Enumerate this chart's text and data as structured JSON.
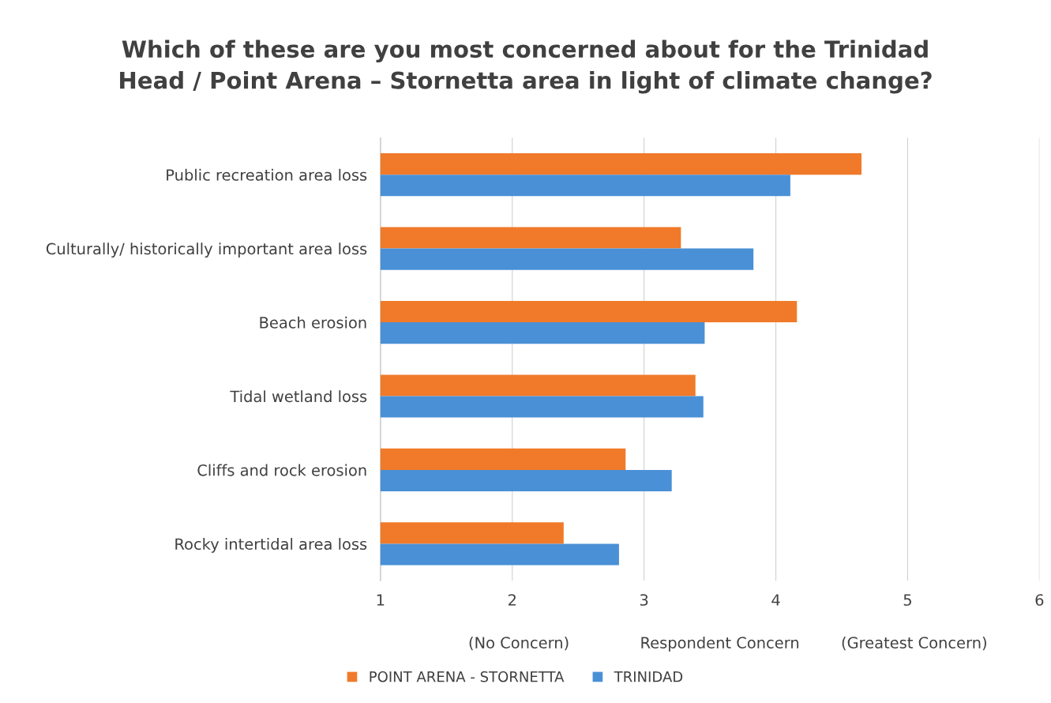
{
  "chart_data": {
    "type": "bar",
    "orientation": "horizontal",
    "title": "Which of these are you most concerned about for the Trinidad\nHead / Point Arena – Stornetta area in light of climate change?",
    "categories": [
      "Public recreation area loss",
      "Culturally/ historically important area loss",
      "Beach erosion",
      "Tidal wetland loss",
      "Cliffs and rock erosion",
      "Rocky intertidal area loss"
    ],
    "series": [
      {
        "name": "POINT ARENA - STORNETTA",
        "color": "#f07a2a",
        "values": [
          4.65,
          3.28,
          4.16,
          3.39,
          2.86,
          2.39
        ]
      },
      {
        "name": "TRINIDAD",
        "color": "#4a90d6",
        "values": [
          4.11,
          3.83,
          3.46,
          3.45,
          3.21,
          2.81
        ]
      }
    ],
    "xlabel": "Respondent Concern",
    "annotations": [
      "(No Concern)",
      "(Greatest Concern)"
    ],
    "xlim": [
      1,
      6
    ],
    "xticks": [
      1,
      2,
      3,
      4,
      5,
      6
    ],
    "grid": "x",
    "legend": "bottom"
  }
}
